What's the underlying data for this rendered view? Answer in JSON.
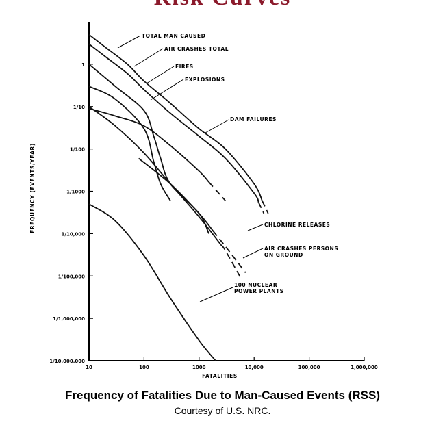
{
  "header": {
    "title": "Risk Curves"
  },
  "caption": "Frequency of Fatalities Due to Man-Caused Events (RSS)",
  "credit": "Courtesy of U.S. NRC.",
  "chart_data": {
    "type": "line",
    "xlabel": "FATALITIES",
    "ylabel": "FREQUENCY (EVENTS/YEAR)",
    "x_scale": "log",
    "y_scale": "log",
    "xlim": [
      10,
      1000000
    ],
    "ylim": [
      1e-07,
      10
    ],
    "grid": false,
    "x_ticks": [
      {
        "value": 10,
        "label": "10"
      },
      {
        "value": 100,
        "label": "100"
      },
      {
        "value": 1000,
        "label": "1000"
      },
      {
        "value": 10000,
        "label": "10,000"
      },
      {
        "value": 100000,
        "label": "100,000"
      },
      {
        "value": 1000000,
        "label": "1,000,000"
      }
    ],
    "y_ticks": [
      {
        "value": 1,
        "label": "1"
      },
      {
        "value": 0.1,
        "label": "1/10"
      },
      {
        "value": 0.01,
        "label": "1/100"
      },
      {
        "value": 0.001,
        "label": "1/1000"
      },
      {
        "value": 0.0001,
        "label": "1/10,000"
      },
      {
        "value": 1e-05,
        "label": "1/100,000"
      },
      {
        "value": 1e-06,
        "label": "1/1,000,000"
      },
      {
        "value": 1e-07,
        "label": "1/10,000,000"
      }
    ],
    "series": [
      {
        "name": "TOTAL MAN CAUSED",
        "x": [
          10,
          20,
          50,
          100,
          300,
          1000,
          3000,
          10000,
          18000
        ],
        "y": [
          5,
          2.5,
          1,
          0.4,
          0.12,
          0.03,
          0.01,
          0.0015,
          0.0003
        ],
        "dashed_from": 14000
      },
      {
        "name": "AIR CRASHES TOTAL",
        "x": [
          10,
          20,
          50,
          100,
          300,
          1000,
          3000,
          10000,
          15000
        ],
        "y": [
          3,
          1.5,
          0.6,
          0.25,
          0.07,
          0.02,
          0.006,
          0.0009,
          0.0003
        ],
        "dashed_from": 12000
      },
      {
        "name": "FIRES",
        "x": [
          10,
          30,
          100,
          150,
          200,
          300
        ],
        "y": [
          0.3,
          0.15,
          0.03,
          0.005,
          0.0015,
          0.0006
        ]
      },
      {
        "name": "EXPLOSIONS",
        "x": [
          10,
          30,
          100,
          150,
          200,
          300,
          1000,
          1500
        ],
        "y": [
          1,
          0.3,
          0.08,
          0.02,
          0.006,
          0.0015,
          0.0003,
          0.0001
        ]
      },
      {
        "name": "DAM FAILURES",
        "x": [
          10,
          30,
          100,
          300,
          1000,
          3000
        ],
        "y": [
          0.09,
          0.06,
          0.035,
          0.012,
          0.003,
          0.0006
        ],
        "dashed_from": 1500
      },
      {
        "name": "CHLORINE RELEASES",
        "x": [
          80,
          300,
          1000,
          3000,
          7000
        ],
        "y": [
          0.006,
          0.0015,
          0.0003,
          5e-05,
          1.2e-05
        ],
        "dashed_from": 1800
      },
      {
        "name": "AIR CRASHES PERSONS ON GROUND",
        "x": [
          10,
          30,
          100,
          300,
          1000,
          3000,
          6000
        ],
        "y": [
          0.1,
          0.035,
          0.008,
          0.0015,
          0.00025,
          4e-05,
          8e-06
        ],
        "dashed_from": 2500
      },
      {
        "name": "100 NUCLEAR POWER PLANTS",
        "x": [
          10,
          30,
          100,
          300,
          1000,
          2000
        ],
        "y": [
          0.0005,
          0.0002,
          3e-05,
          3e-06,
          3e-07,
          1e-07
        ]
      }
    ],
    "labels": [
      {
        "series": 0,
        "text": "TOTAL MAN CAUSED",
        "lines": [
          "TOTAL MAN CAUSED"
        ]
      },
      {
        "series": 1,
        "text": "AIR CRASHES TOTAL",
        "lines": [
          "AIR CRASHES TOTAL"
        ]
      },
      {
        "series": 2,
        "text": "FIRES",
        "lines": [
          "FIRES"
        ]
      },
      {
        "series": 3,
        "text": "EXPLOSIONS",
        "lines": [
          "EXPLOSIONS"
        ]
      },
      {
        "series": 4,
        "text": "DAM FAILURES",
        "lines": [
          "DAM FAILURES"
        ]
      },
      {
        "series": 5,
        "text": "CHLORINE RELEASES",
        "lines": [
          "CHLORINE RELEASES"
        ]
      },
      {
        "series": 6,
        "text": "AIR CRASHES PERSONS ON GROUND",
        "lines": [
          "AIR CRASHES PERSONS",
          "ON GROUND"
        ]
      },
      {
        "series": 7,
        "text": "100 NUCLEAR POWER PLANTS",
        "lines": [
          "100 NUCLEAR",
          "POWER PLANTS"
        ]
      }
    ]
  }
}
